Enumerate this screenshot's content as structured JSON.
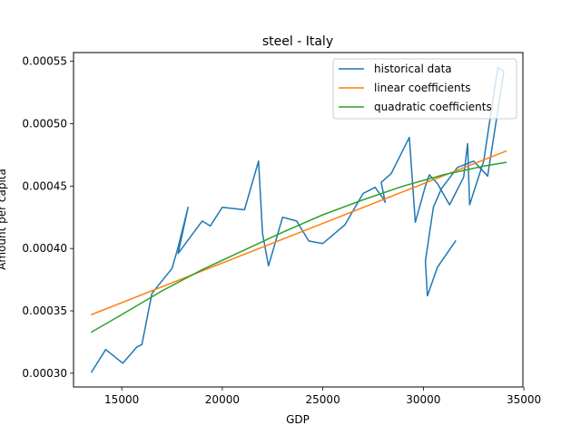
{
  "chart_data": {
    "type": "line",
    "title": "steel - Italy",
    "xlabel": "GDP",
    "ylabel": "Amount per capita",
    "xlim": [
      12600,
      34950
    ],
    "ylim": [
      0.000289,
      0.000557
    ],
    "xticks": [
      15000,
      20000,
      25000,
      30000,
      35000
    ],
    "xtick_labels": [
      "15000",
      "20000",
      "25000",
      "30000",
      "35000"
    ],
    "yticks": [
      0.0003,
      0.00035,
      0.0004,
      0.00045,
      0.0005,
      0.00055
    ],
    "ytick_labels": [
      "0.00030",
      "0.00035",
      "0.00040",
      "0.00045",
      "0.00050",
      "0.00055"
    ],
    "grid": false,
    "legend_position": "top-right",
    "series": [
      {
        "name": "historical data",
        "color": "#1f77b4",
        "x": [
          13500,
          14200,
          15050,
          15750,
          16000,
          16500,
          17500,
          17800,
          18300,
          17800,
          19000,
          19400,
          20000,
          21100,
          21800,
          22000,
          22300,
          23000,
          23700,
          24300,
          25000,
          26100,
          27000,
          27600,
          28000,
          28100,
          27900,
          28400,
          29300,
          29600,
          30100,
          30300,
          30700,
          31300,
          32000,
          32200,
          32300,
          33000,
          33700,
          34000,
          33200,
          32500,
          31700,
          30900,
          30500,
          30100,
          30200,
          30700,
          31600
        ],
        "y": [
          0.000301,
          0.000319,
          0.000308,
          0.000321,
          0.000323,
          0.000364,
          0.000384,
          0.000401,
          0.000433,
          0.000396,
          0.000422,
          0.000418,
          0.000433,
          0.000431,
          0.00047,
          0.000412,
          0.000386,
          0.000425,
          0.000422,
          0.000406,
          0.000404,
          0.000419,
          0.000444,
          0.000449,
          0.00044,
          0.000437,
          0.000453,
          0.00046,
          0.000489,
          0.000421,
          0.00045,
          0.000459,
          0.000452,
          0.000435,
          0.000457,
          0.000484,
          0.000435,
          0.00047,
          0.000545,
          0.000542,
          0.000458,
          0.00047,
          0.000465,
          0.000448,
          0.000433,
          0.00039,
          0.000362,
          0.000385,
          0.000406
        ]
      },
      {
        "name": "linear coefficients",
        "color": "#ff7f0e",
        "x": [
          13500,
          34100
        ],
        "y": [
          0.000347,
          0.000478
        ]
      },
      {
        "name": "quadratic coefficients",
        "color": "#2ca02c",
        "x": [
          13500,
          15000,
          17000,
          19000,
          21000,
          23000,
          25000,
          27000,
          29000,
          31000,
          33000,
          34100
        ],
        "y": [
          0.000333,
          0.000347,
          0.000366,
          0.000383,
          0.000398,
          0.000413,
          0.000427,
          0.000439,
          0.00045,
          0.000459,
          0.000466,
          0.000469
        ]
      }
    ]
  }
}
